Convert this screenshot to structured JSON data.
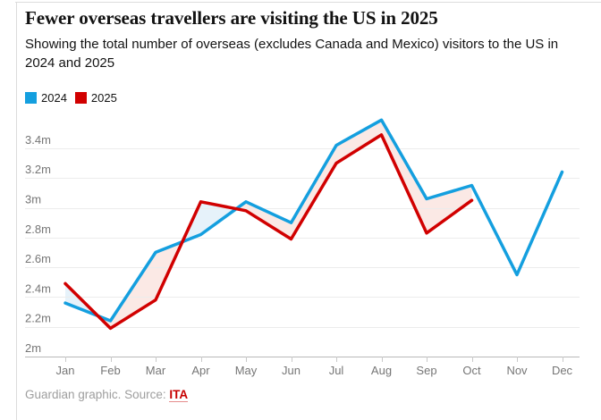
{
  "page": {
    "title": "Fewer overseas travellers are visiting the US in 2025",
    "subtitle": "Showing the total number of overseas (excludes Canada and Mexico) visitors to the US in 2024 and 2025",
    "footer": {
      "prefix": "Guardian graphic. Source: ",
      "source_label": "ITA"
    }
  },
  "colors": {
    "blue": "#149fdf",
    "red": "#d10000",
    "fill_when_2024_higher": "#fbe9e5",
    "fill_when_2025_higher": "#e6f2fa",
    "gridline": "#ececec",
    "baseline": "#b9b9b9",
    "tick": "#c9c9c9",
    "axis_text": "#767676",
    "source_link": "#c70000"
  },
  "chart_data": {
    "type": "line",
    "title": "Fewer overseas travellers are visiting the US in 2025",
    "subtitle": "Showing the total number of overseas (excludes Canada and Mexico) visitors to the US in 2024 and 2025",
    "categories": [
      "Jan",
      "Feb",
      "Mar",
      "Apr",
      "May",
      "Jun",
      "Jul",
      "Aug",
      "Sep",
      "Oct",
      "Nov",
      "Dec"
    ],
    "unit": "millions of visitors",
    "series": [
      {
        "name": "2024",
        "color": "#149fdf",
        "values": [
          2.36,
          2.24,
          2.7,
          2.82,
          3.04,
          2.9,
          3.42,
          3.59,
          3.06,
          3.15,
          2.55,
          3.24
        ]
      },
      {
        "name": "2025",
        "color": "#d10000",
        "values": [
          2.49,
          2.19,
          2.38,
          3.04,
          2.98,
          2.79,
          3.3,
          3.49,
          2.83,
          3.05
        ]
      }
    ],
    "ylim": [
      2.0,
      3.6
    ],
    "yticks": [
      2.0,
      2.2,
      2.4,
      2.6,
      2.8,
      3.0,
      3.2,
      3.4
    ],
    "ytick_labels": [
      "2m",
      "2.2m",
      "2.4m",
      "2.6m",
      "2.8m",
      "3m",
      "3.2m",
      "3.4m"
    ],
    "grid": "horizontal-only",
    "legend_position": "top-left",
    "fill_between_note": "gap shaded pink where 2024 is higher, light blue where 2025 is higher"
  }
}
